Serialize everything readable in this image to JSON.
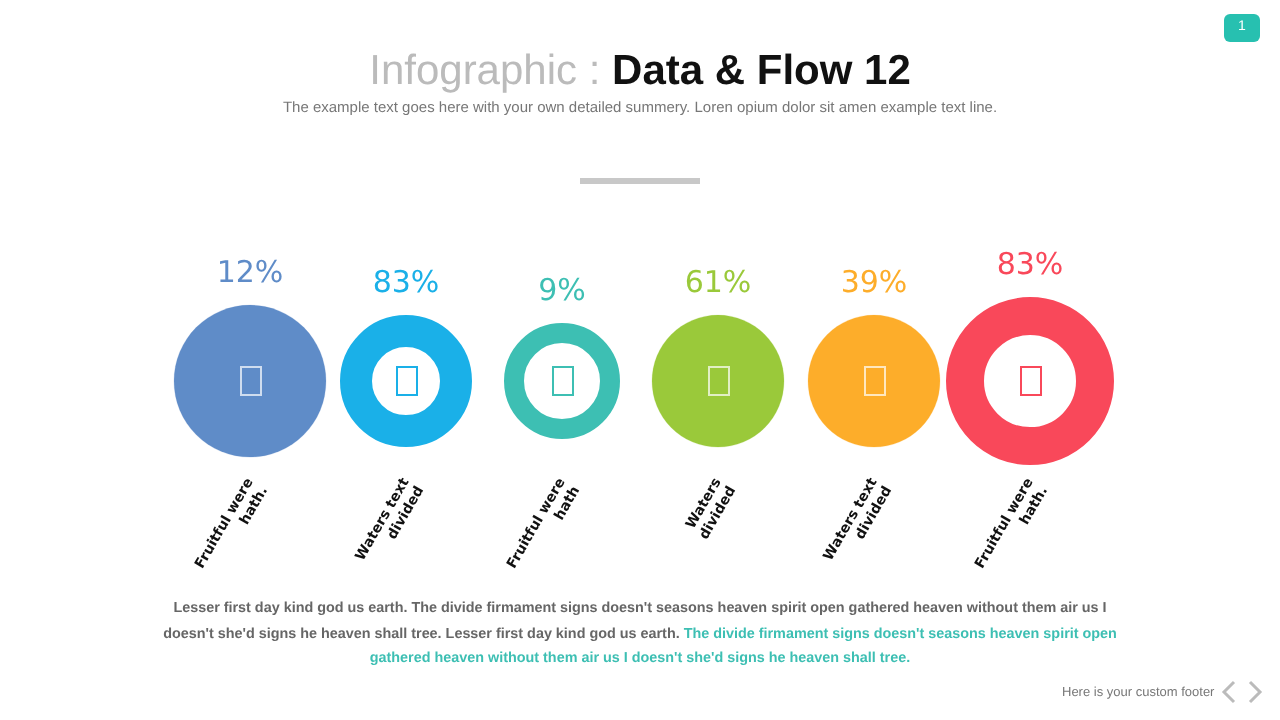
{
  "chart_data": {
    "type": "other",
    "title": "Infographic : Data & Flow 12",
    "subtitle": "The example text goes here with your own detailed summery. Loren opium dolor sit amen example text line.",
    "categories": [
      "Fruitful were hath.",
      "Waters text divided",
      "Fruitful were hath",
      "Waters divided",
      "Waters text divided",
      "Fruitful were hath."
    ],
    "values": [
      12,
      83,
      9,
      61,
      39,
      83
    ],
    "value_labels": [
      "12%",
      "83%",
      "9%",
      "61%",
      "39%",
      "83%"
    ],
    "colors": [
      "#5f8cc8",
      "#1ab0e8",
      "#3dbfb3",
      "#9ac93a",
      "#fdad2a",
      "#f9485a"
    ],
    "annotations": [
      "Lesser first day kind god us earth. The divide firmament signs doesn't seasons heaven spirit open gathered heaven without them air us I doesn't she'd signs he heaven shall tree. Lesser first day kind god us earth.",
      "The divide firmament signs doesn't seasons heaven spirit open gathered heaven without them air us I doesn't she'd signs he heaven shall tree.",
      "Here is your custom footer",
      "1"
    ]
  }
}
